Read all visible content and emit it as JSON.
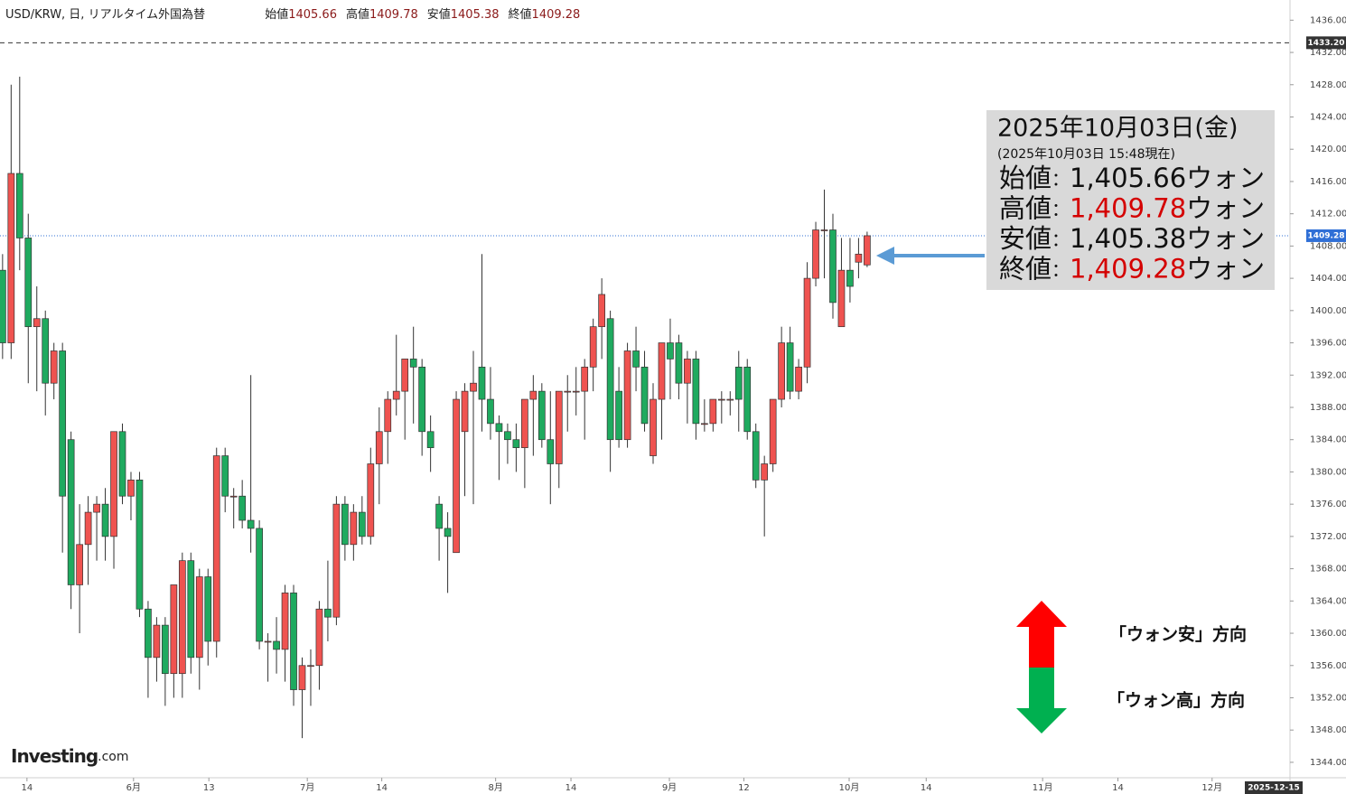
{
  "header": {
    "symbol": "USD/KRW, 日, リアルタイム外国為替",
    "fields": [
      {
        "label": "始値",
        "value": "1405.66"
      },
      {
        "label": "高値",
        "value": "1409.78"
      },
      {
        "label": "安値",
        "value": "1405.38"
      },
      {
        "label": "終値",
        "value": "1409.28"
      }
    ]
  },
  "info_box": {
    "date": "2025年10月03日(金)",
    "timestamp": "(2025年10月03日 15:48現在)",
    "rows": [
      {
        "label": "始値",
        "sep": "：",
        "value": "1,405.66",
        "unit": "ウォン"
      },
      {
        "label": "高値",
        "sep": "：",
        "value": "1,409.78",
        "unit": "ウォン"
      },
      {
        "label": "安値",
        "sep": "：",
        "value": "1,405.38",
        "unit": "ウォン"
      },
      {
        "label": "終値",
        "sep": "：",
        "value": "1,409.28",
        "unit": "ウォン"
      }
    ]
  },
  "direction_legend": {
    "up": "「ウォン安」方向",
    "down": "「ウォン高」方向"
  },
  "logo": {
    "brand": "Investing",
    "suffix": ".com"
  },
  "chart_data": {
    "type": "candlestick",
    "up_color": "#ef5350",
    "down_color": "#1faa5f",
    "x": [
      0,
      1,
      2,
      3,
      4,
      5,
      6,
      7,
      8,
      9,
      10,
      11,
      12,
      13,
      14,
      15,
      16,
      17,
      18,
      19,
      20,
      21,
      22,
      23,
      24,
      25,
      26,
      27,
      28,
      29,
      30,
      31,
      32,
      33,
      34,
      35,
      36,
      37,
      38,
      39,
      40,
      41,
      42,
      43,
      44,
      45,
      46,
      47,
      48,
      49,
      50,
      51,
      52,
      53,
      54,
      55,
      56,
      57,
      58,
      59,
      60,
      61,
      62,
      63,
      64,
      65,
      66,
      67,
      68,
      69,
      70,
      71,
      72,
      73,
      74,
      75,
      76,
      77,
      78,
      79,
      80,
      81,
      82,
      83,
      84,
      85,
      86,
      87,
      88,
      89,
      90,
      91,
      92,
      93,
      94,
      95,
      96,
      97,
      98,
      99,
      100,
      101
    ],
    "open": [
      1405,
      1396,
      1417,
      1409,
      1398,
      1399,
      1391,
      1395,
      1384,
      1366,
      1371,
      1375,
      1376,
      1372,
      1385,
      1377,
      1379,
      1363,
      1357,
      1361,
      1355,
      1355,
      1369,
      1357,
      1367,
      1359,
      1382,
      1377,
      1377,
      1374,
      1373,
      1359,
      1359,
      1358,
      1365,
      1353,
      1356,
      1356,
      1363,
      1362,
      1376,
      1371,
      1375,
      1372,
      1381,
      1385,
      1389,
      1390,
      1394,
      1393,
      1385,
      1376,
      1373,
      1370,
      1385,
      1390,
      1393,
      1389,
      1386,
      1385,
      1384,
      1383,
      1389,
      1390,
      1384,
      1381,
      1390,
      1390,
      1390,
      1393,
      1398,
      1399,
      1390,
      1384,
      1395,
      1393,
      1382,
      1389,
      1396,
      1396,
      1391,
      1394,
      1386,
      1386,
      1389,
      1389,
      1393,
      1393,
      1385,
      1379,
      1381,
      1389,
      1396,
      1390,
      1393,
      1404,
      1410,
      1410,
      1398,
      1405,
      1406,
      1405.66
    ],
    "high": [
      1407,
      1428,
      1429,
      1412,
      1403,
      1400,
      1396,
      1396,
      1385,
      1376,
      1377,
      1377,
      1378,
      1385,
      1386,
      1380,
      1380,
      1364,
      1362,
      1362,
      1366,
      1370,
      1370,
      1368,
      1368,
      1383,
      1383,
      1378,
      1379,
      1392,
      1374,
      1360,
      1362,
      1366,
      1366,
      1357,
      1358,
      1364,
      1369,
      1377,
      1377,
      1376,
      1377,
      1383,
      1388,
      1390,
      1397,
      1394,
      1398,
      1394,
      1387,
      1377,
      1375,
      1390,
      1391,
      1395,
      1407,
      1393,
      1387,
      1386,
      1386,
      1389,
      1392,
      1391,
      1390,
      1390,
      1392,
      1393,
      1394,
      1399,
      1404,
      1400,
      1393,
      1396,
      1398,
      1395,
      1391,
      1396,
      1399,
      1397,
      1395,
      1395,
      1389,
      1389,
      1390,
      1390,
      1395,
      1394,
      1386,
      1382,
      1389,
      1398,
      1398,
      1394,
      1406,
      1411,
      1415,
      1412,
      1409,
      1409,
      1409,
      1409.78
    ],
    "low": [
      1394,
      1394,
      1405,
      1391,
      1390,
      1387,
      1389,
      1370,
      1363,
      1360,
      1366,
      1369,
      1369,
      1368,
      1376,
      1374,
      1362,
      1352,
      1354,
      1351,
      1352,
      1352,
      1355,
      1353,
      1356,
      1357,
      1375,
      1373,
      1373,
      1370,
      1358,
      1354,
      1355,
      1354,
      1351,
      1347,
      1351,
      1353,
      1359,
      1361,
      1369,
      1369,
      1371,
      1371,
      1376,
      1381,
      1387,
      1384,
      1386,
      1382,
      1380,
      1369,
      1365,
      1370,
      1377,
      1376,
      1385,
      1384,
      1379,
      1381,
      1380,
      1378,
      1382,
      1383,
      1376,
      1378,
      1385,
      1387,
      1384,
      1390,
      1394,
      1380,
      1383,
      1383,
      1390,
      1385,
      1381,
      1384,
      1389,
      1389,
      1386,
      1384,
      1385,
      1385,
      1386,
      1387,
      1385,
      1384,
      1378,
      1372,
      1380,
      1388,
      1389,
      1389,
      1391,
      1403,
      1404,
      1399,
      1398,
      1401,
      1404,
      1405.38
    ],
    "close": [
      1396,
      1417,
      1409,
      1398,
      1399,
      1391,
      1395,
      1377,
      1366,
      1371,
      1375,
      1376,
      1372,
      1385,
      1377,
      1379,
      1363,
      1357,
      1361,
      1355,
      1366,
      1369,
      1357,
      1367,
      1359,
      1382,
      1377,
      1377,
      1374,
      1373,
      1359,
      1359,
      1358,
      1365,
      1353,
      1356,
      1356,
      1363,
      1362,
      1376,
      1371,
      1375,
      1372,
      1381,
      1385,
      1389,
      1390,
      1394,
      1393,
      1385,
      1383,
      1373,
      1372,
      1389,
      1390,
      1391,
      1389,
      1386,
      1385,
      1384,
      1383,
      1389,
      1390,
      1384,
      1381,
      1390,
      1390,
      1390,
      1393,
      1398,
      1402,
      1384,
      1384,
      1395,
      1393,
      1386,
      1389,
      1396,
      1394,
      1391,
      1394,
      1386,
      1386,
      1389,
      1389,
      1389,
      1389,
      1385,
      1379,
      1381,
      1389,
      1396,
      1390,
      1393,
      1404,
      1410,
      1410,
      1401,
      1405,
      1403,
      1407,
      1409.28
    ],
    "xlim": [
      -0.3,
      150.4
    ],
    "xticks": [
      {
        "value": 2.85,
        "label": "14"
      },
      {
        "value": 15.3,
        "label": "6月"
      },
      {
        "value": 24.1,
        "label": "13"
      },
      {
        "value": 35.6,
        "label": "7月"
      },
      {
        "value": 44.3,
        "label": "14"
      },
      {
        "value": 57.6,
        "label": "8月"
      },
      {
        "value": 66.4,
        "label": "14"
      },
      {
        "value": 77.9,
        "label": "9月"
      },
      {
        "value": 86.6,
        "label": "12"
      },
      {
        "value": 98.9,
        "label": "10月"
      },
      {
        "value": 107.9,
        "label": "14"
      },
      {
        "value": 121.5,
        "label": "11月"
      },
      {
        "value": 130.3,
        "label": "14"
      },
      {
        "value": 141.3,
        "label": "12月"
      }
    ],
    "ylim": [
      1342.2,
      1438.5
    ],
    "yticks": [
      {
        "value": 1344,
        "label": "1344.00"
      },
      {
        "value": 1348,
        "label": "1348.00"
      },
      {
        "value": 1352,
        "label": "1352.00"
      },
      {
        "value": 1356,
        "label": "1356.00"
      },
      {
        "value": 1360,
        "label": "1360.00"
      },
      {
        "value": 1364,
        "label": "1364.00"
      },
      {
        "value": 1368,
        "label": "1368.00"
      },
      {
        "value": 1372,
        "label": "1372.00"
      },
      {
        "value": 1376,
        "label": "1376.00"
      },
      {
        "value": 1380,
        "label": "1380.00"
      },
      {
        "value": 1384,
        "label": "1384.00"
      },
      {
        "value": 1388,
        "label": "1388.00"
      },
      {
        "value": 1392,
        "label": "1392.00"
      },
      {
        "value": 1396,
        "label": "1396.00"
      },
      {
        "value": 1400,
        "label": "1400.00"
      },
      {
        "value": 1404,
        "label": "1404.00"
      },
      {
        "value": 1408,
        "label": "1408.00"
      },
      {
        "value": 1412,
        "label": "1412.00"
      },
      {
        "value": 1416,
        "label": "1416.00"
      },
      {
        "value": 1420,
        "label": "1420.00"
      },
      {
        "value": 1424,
        "label": "1424.00"
      },
      {
        "value": 1428,
        "label": "1428.00"
      },
      {
        "value": 1432,
        "label": "1432.00"
      },
      {
        "value": 1436,
        "label": "1436.00"
      }
    ],
    "price_lines": [
      {
        "value": 1433.2,
        "label": "1433.20",
        "color": "#333333",
        "style": "dashed"
      },
      {
        "value": 1409.28,
        "label": "1409.28",
        "color": "#2f6fd6",
        "style": "dotted"
      }
    ],
    "cursor_label": "2025-12-15"
  }
}
